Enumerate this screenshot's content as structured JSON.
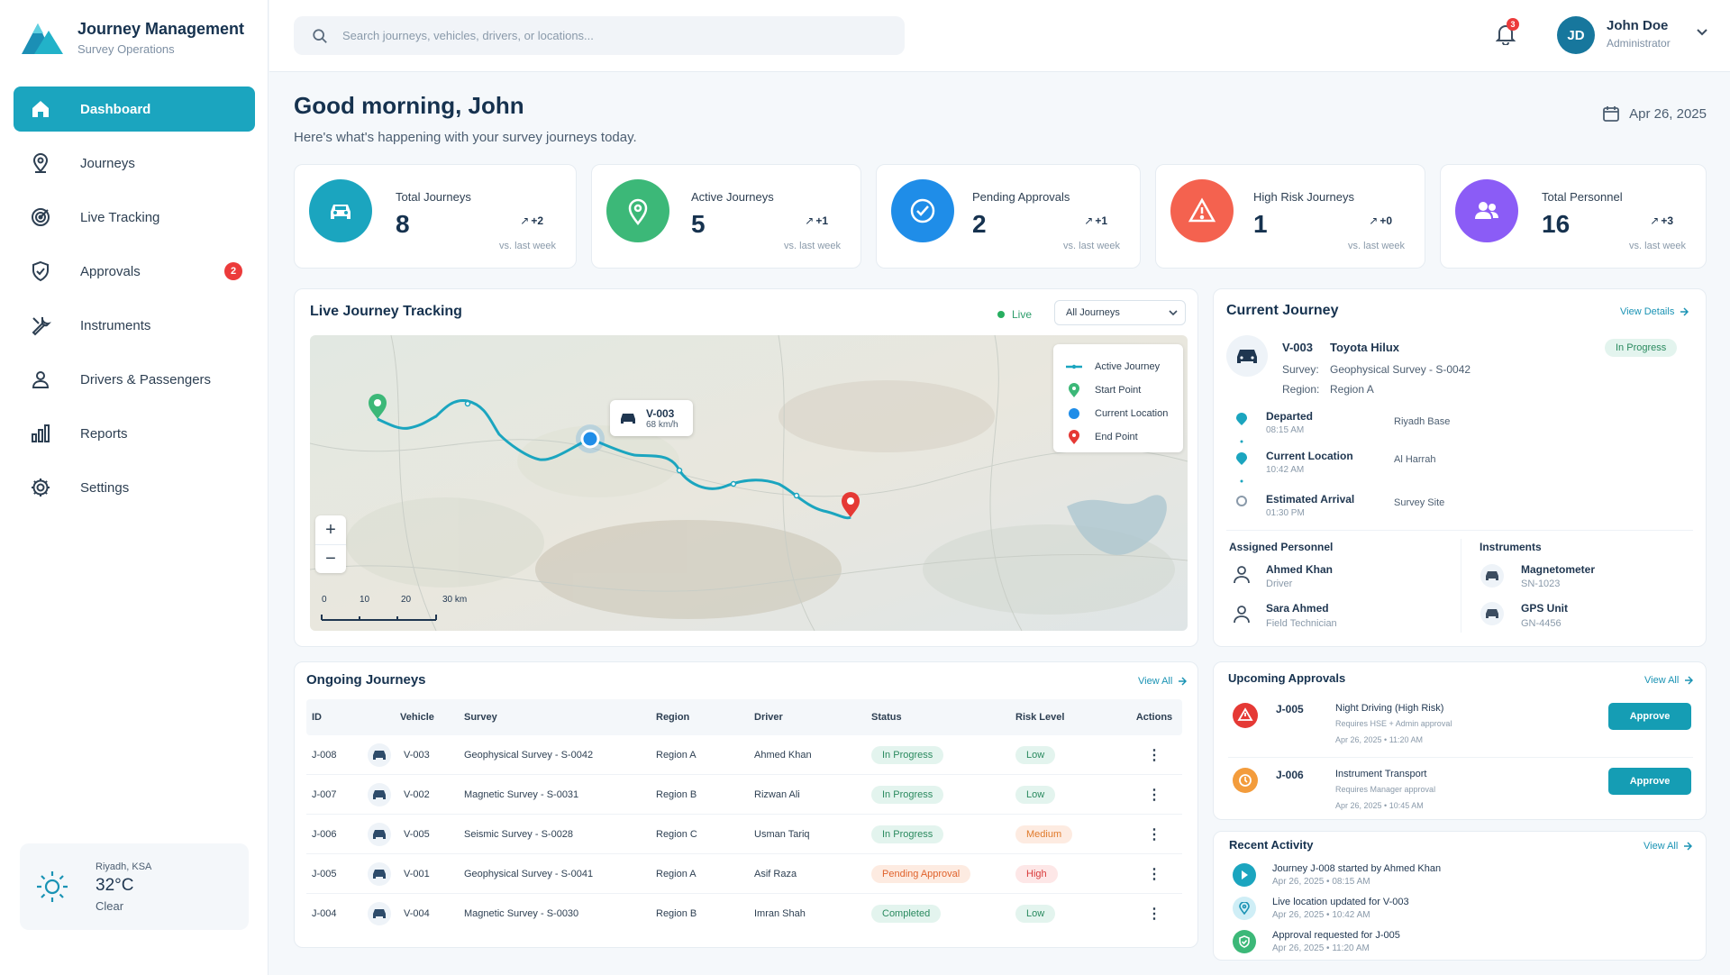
{
  "brand": {
    "title": "Journey Management",
    "subtitle": "Survey Operations"
  },
  "sidebar": {
    "items": [
      {
        "label": "Dashboard",
        "icon": "home-icon",
        "active": true
      },
      {
        "label": "Journeys",
        "icon": "map-pin-icon"
      },
      {
        "label": "Live Tracking",
        "icon": "target-icon"
      },
      {
        "label": "Approvals",
        "icon": "shield-check-icon",
        "badge": "2"
      },
      {
        "label": "Instruments",
        "icon": "wrench-icon"
      },
      {
        "label": "Drivers & Passengers",
        "icon": "user-icon"
      },
      {
        "label": "Reports",
        "icon": "bar-chart-icon"
      },
      {
        "label": "Settings",
        "icon": "gear-icon"
      }
    ]
  },
  "weather": {
    "location": "Riyadh, KSA",
    "temp": "32°C",
    "condition": "Clear",
    "icon": "sun-icon"
  },
  "search": {
    "placeholder": "Search journeys, vehicles, drivers, or locations..."
  },
  "notifications": {
    "count": "3"
  },
  "user": {
    "initials": "JD",
    "name": "John Doe",
    "role": "Administrator"
  },
  "greeting": {
    "title": "Good morning, John",
    "subtitle": "Here's what's happening with your survey journeys today.",
    "date": "Apr 26, 2025"
  },
  "kpis": [
    {
      "title": "Total Journeys",
      "value": "8",
      "delta": "+2",
      "vs": "vs. last week",
      "color": "#1ba5bf",
      "icon": "car-icon"
    },
    {
      "title": "Active Journeys",
      "value": "5",
      "delta": "+1",
      "vs": "vs. last week",
      "color": "#3cb878",
      "icon": "map-pin-icon"
    },
    {
      "title": "Pending Approvals",
      "value": "2",
      "delta": "+1",
      "vs": "vs. last week",
      "color": "#1f8de8",
      "icon": "check-circle-icon"
    },
    {
      "title": "High Risk Journeys",
      "value": "1",
      "delta": "+0",
      "vs": "vs. last week",
      "color": "#f4624f",
      "icon": "warning-icon"
    },
    {
      "title": "Total Personnel",
      "value": "16",
      "delta": "+3",
      "vs": "vs. last week",
      "color": "#8b5cf6",
      "icon": "users-icon"
    }
  ],
  "live": {
    "title": "Live Journey Tracking",
    "status": "Live",
    "filter": "All Journeys",
    "legend": [
      "Active Journey",
      "Start Point",
      "Current Location",
      "End Point"
    ],
    "vehicle": {
      "id": "V-003",
      "speed": "68 km/h"
    },
    "scale": [
      "0",
      "10",
      "20",
      "30 km"
    ]
  },
  "current": {
    "title": "Current Journey",
    "view": "View Details",
    "vehicle_id": "V-003",
    "vehicle_model": "Toyota Hilux",
    "status": "In Progress",
    "survey_label": "Survey:",
    "survey": "Geophysical Survey - S-0042",
    "region_label": "Region:",
    "region": "Region A",
    "timeline": [
      {
        "label": "Departed",
        "time": "08:15 AM",
        "place": "Riyadh Base"
      },
      {
        "label": "Current Location",
        "time": "10:42 AM",
        "place": "Al Harrah"
      },
      {
        "label": "Estimated Arrival",
        "time": "01:30 PM",
        "place": "Survey Site"
      }
    ],
    "personnel_title": "Assigned Personnel",
    "personnel": [
      {
        "name": "Ahmed Khan",
        "role": "Driver"
      },
      {
        "name": "Sara Ahmed",
        "role": "Field Technician"
      }
    ],
    "instruments_title": "Instruments",
    "instruments": [
      {
        "name": "Magnetometer",
        "sn": "SN-1023"
      },
      {
        "name": "GPS Unit",
        "sn": "GN-4456"
      }
    ]
  },
  "ongoing": {
    "title": "Ongoing Journeys",
    "view": "View All",
    "columns": [
      "ID",
      "Vehicle",
      "Survey",
      "Region",
      "Driver",
      "Status",
      "Risk Level",
      "Actions"
    ],
    "rows": [
      {
        "id": "J-008",
        "vehicle": "V-003",
        "survey": "Geophysical Survey - S-0042",
        "region": "Region A",
        "driver": "Ahmed Khan",
        "status": "In Progress",
        "risk": "Low"
      },
      {
        "id": "J-007",
        "vehicle": "V-002",
        "survey": "Magnetic Survey - S-0031",
        "region": "Region B",
        "driver": "Rizwan Ali",
        "status": "In Progress",
        "risk": "Low"
      },
      {
        "id": "J-006",
        "vehicle": "V-005",
        "survey": "Seismic Survey - S-0028",
        "region": "Region C",
        "driver": "Usman Tariq",
        "status": "In Progress",
        "risk": "Medium"
      },
      {
        "id": "J-005",
        "vehicle": "V-001",
        "survey": "Geophysical Survey - S-0041",
        "region": "Region A",
        "driver": "Asif Raza",
        "status": "Pending Approval",
        "risk": "High"
      },
      {
        "id": "J-004",
        "vehicle": "V-004",
        "survey": "Magnetic Survey - S-0030",
        "region": "Region B",
        "driver": "Imran Shah",
        "status": "Completed",
        "risk": "Low"
      }
    ]
  },
  "approvals": {
    "title": "Upcoming Approvals",
    "view": "View All",
    "items": [
      {
        "id": "J-005",
        "title": "Night Driving (High Risk)",
        "req": "Requires HSE + Admin approval",
        "date": "Apr 26, 2025 • 11:20 AM",
        "button": "Approve",
        "color": "#e53935"
      },
      {
        "id": "J-006",
        "title": "Instrument Transport",
        "req": "Requires Manager approval",
        "date": "Apr 26, 2025 • 10:45 AM",
        "button": "Approve",
        "color": "#f39c3c"
      }
    ]
  },
  "activity": {
    "title": "Recent Activity",
    "view": "View All",
    "items": [
      {
        "text": "Journey J-008 started by Ahmed Khan",
        "date": "Apr 26, 2025 • 08:15 AM",
        "color": "#1ba5bf"
      },
      {
        "text": "Live location updated for V-003",
        "date": "Apr 26, 2025 • 10:42 AM",
        "color": "#7fc8dc"
      },
      {
        "text": "Approval requested for J-005",
        "date": "Apr 26, 2025 • 11:20 AM",
        "color": "#3cb878"
      }
    ]
  }
}
